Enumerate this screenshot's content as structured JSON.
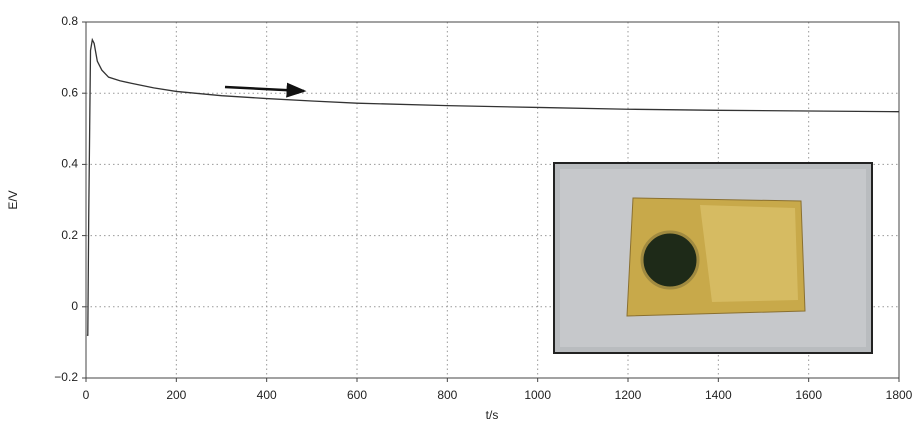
{
  "chart_data": {
    "type": "line",
    "x_label": "t/s",
    "y_label": "E/V",
    "x": [
      2,
      4,
      6,
      10,
      14,
      18,
      25,
      35,
      50,
      75,
      100,
      150,
      200,
      300,
      400,
      500,
      600,
      800,
      1000,
      1200,
      1400,
      1600,
      1800
    ],
    "values": [
      -0.08,
      -0.08,
      0.25,
      0.72,
      0.75,
      0.74,
      0.69,
      0.665,
      0.645,
      0.635,
      0.628,
      0.615,
      0.605,
      0.593,
      0.585,
      0.578,
      0.572,
      0.565,
      0.56,
      0.555,
      0.552,
      0.55,
      0.548
    ],
    "color": "#333333",
    "xlim": [
      0,
      1800
    ],
    "xticks": [
      0,
      200,
      400,
      600,
      800,
      1000,
      1200,
      1400,
      1600,
      1800
    ],
    "ylim": [
      -0.2,
      0.8
    ],
    "yticks": [
      {
        "value": -0.2,
        "label": "−0.2"
      },
      0,
      0.2,
      0.4,
      0.6,
      0.8
    ],
    "grid": true
  }
}
